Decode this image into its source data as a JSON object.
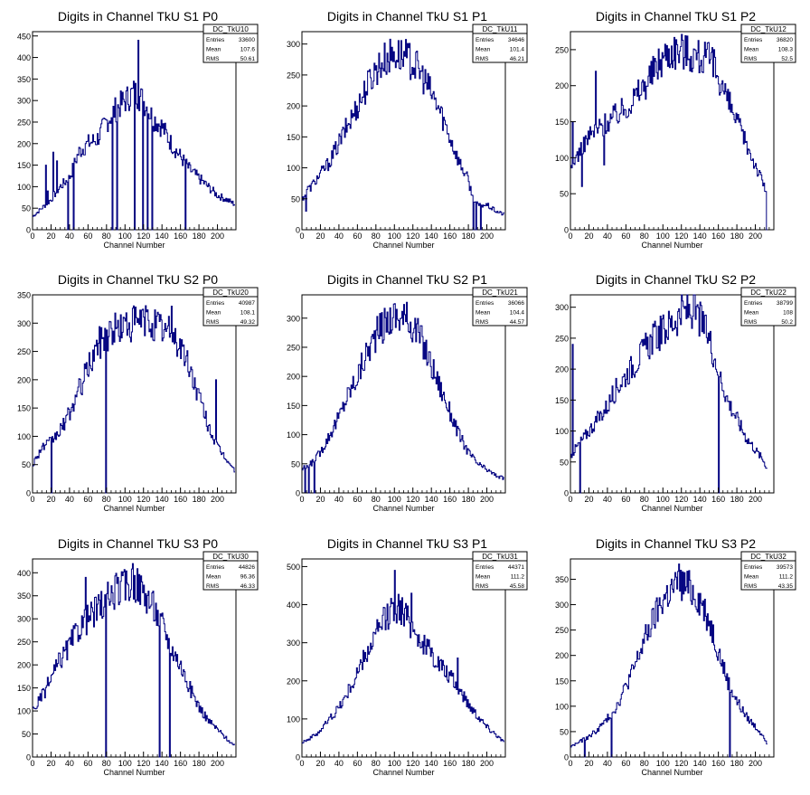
{
  "chart_data": [
    {
      "type": "histogram",
      "title": "Digits in Channel TkU S1 P0",
      "xlabel": "Channel Number",
      "ylabel": "",
      "xlim": [
        0,
        220
      ],
      "ylim": [
        0,
        460
      ],
      "xticks": [
        0,
        20,
        40,
        60,
        80,
        100,
        120,
        140,
        160,
        180,
        200
      ],
      "yticks": [
        0,
        50,
        100,
        150,
        200,
        250,
        300,
        350,
        400,
        450
      ],
      "stats": {
        "name": "DC_TkU10",
        "rows": [
          [
            "Entries",
            "33600"
          ],
          [
            "Mean",
            "107.6"
          ],
          [
            "RMS",
            "50.61"
          ]
        ]
      },
      "series": [
        {
          "x": [
            0,
            10,
            20,
            30,
            40,
            50,
            60,
            70,
            80,
            90,
            100,
            110,
            120,
            130,
            140,
            150,
            160,
            170,
            180,
            190,
            200,
            210,
            218
          ],
          "y": [
            30,
            50,
            70,
            100,
            120,
            180,
            200,
            210,
            250,
            280,
            300,
            320,
            300,
            260,
            240,
            200,
            170,
            140,
            120,
            100,
            80,
            70,
            60
          ]
        }
      ],
      "spikes": [
        [
          14,
          150
        ],
        [
          16,
          90
        ],
        [
          22,
          180
        ],
        [
          26,
          160
        ],
        [
          38,
          0
        ],
        [
          44,
          0
        ],
        [
          57,
          200
        ],
        [
          86,
          0
        ],
        [
          91,
          0
        ],
        [
          110,
          0
        ],
        [
          114,
          440
        ],
        [
          119,
          0
        ],
        [
          124,
          0
        ],
        [
          129,
          0
        ],
        [
          165,
          0
        ]
      ]
    },
    {
      "type": "histogram",
      "title": "Digits in Channel TkU S1 P1",
      "xlabel": "Channel Number",
      "ylabel": "",
      "xlim": [
        0,
        220
      ],
      "ylim": [
        0,
        320
      ],
      "xticks": [
        0,
        20,
        40,
        60,
        80,
        100,
        120,
        140,
        160,
        180,
        200
      ],
      "yticks": [
        0,
        50,
        100,
        150,
        200,
        250,
        300
      ],
      "stats": {
        "name": "DC_TkU11",
        "rows": [
          [
            "Entries",
            "34646"
          ],
          [
            "Mean",
            "101.4"
          ],
          [
            "RMS",
            "46.21"
          ]
        ]
      },
      "series": [
        {
          "x": [
            0,
            10,
            20,
            30,
            40,
            50,
            60,
            70,
            80,
            90,
            100,
            110,
            120,
            130,
            140,
            150,
            160,
            170,
            180,
            185,
            190,
            200,
            210,
            218
          ],
          "y": [
            50,
            70,
            90,
            110,
            140,
            170,
            200,
            230,
            260,
            275,
            285,
            280,
            270,
            250,
            220,
            190,
            150,
            110,
            80,
            50,
            40,
            40,
            30,
            25
          ]
        }
      ],
      "spikes": [
        [
          4,
          30
        ],
        [
          6,
          70
        ],
        [
          185,
          0
        ],
        [
          188,
          0
        ],
        [
          193,
          0
        ]
      ]
    },
    {
      "type": "histogram",
      "title": "Digits in Channel TkU S1 P2",
      "xlabel": "Channel Number",
      "ylabel": "",
      "xlim": [
        0,
        220
      ],
      "ylim": [
        0,
        275
      ],
      "xticks": [
        0,
        20,
        40,
        60,
        80,
        100,
        120,
        140,
        160,
        180,
        200
      ],
      "yticks": [
        0,
        50,
        100,
        150,
        200,
        250
      ],
      "stats": {
        "name": "DC_TkU12",
        "rows": [
          [
            "Entries",
            "36820"
          ],
          [
            "Mean",
            "108.3"
          ],
          [
            "RMS",
            "52.5"
          ]
        ]
      },
      "series": [
        {
          "x": [
            0,
            10,
            20,
            30,
            40,
            50,
            60,
            70,
            80,
            90,
            100,
            110,
            120,
            130,
            140,
            150,
            160,
            170,
            180,
            190,
            200,
            210,
            212
          ],
          "y": [
            80,
            110,
            130,
            140,
            150,
            160,
            170,
            185,
            200,
            220,
            240,
            250,
            250,
            245,
            240,
            235,
            215,
            180,
            150,
            120,
            90,
            60,
            50
          ]
        }
      ],
      "spikes": [
        [
          2,
          150
        ],
        [
          5,
          100
        ],
        [
          12,
          60
        ],
        [
          27,
          220
        ],
        [
          36,
          90
        ],
        [
          155,
          250
        ],
        [
          212,
          0
        ]
      ]
    },
    {
      "type": "histogram",
      "title": "Digits in Channel TkU S2 P0",
      "xlabel": "Channel Number",
      "ylabel": "",
      "xlim": [
        0,
        220
      ],
      "ylim": [
        0,
        350
      ],
      "xticks": [
        0,
        20,
        40,
        60,
        80,
        100,
        120,
        140,
        160,
        180,
        200
      ],
      "yticks": [
        0,
        50,
        100,
        150,
        200,
        250,
        300,
        350
      ],
      "stats": {
        "name": "DC_TkU20",
        "rows": [
          [
            "Entries",
            "40987"
          ],
          [
            "Mean",
            "108.1"
          ],
          [
            "RMS",
            "49.32"
          ]
        ]
      },
      "series": [
        {
          "x": [
            0,
            10,
            20,
            30,
            40,
            50,
            60,
            70,
            80,
            90,
            100,
            110,
            120,
            130,
            140,
            150,
            160,
            170,
            180,
            190,
            200,
            210,
            218
          ],
          "y": [
            50,
            80,
            90,
            110,
            140,
            180,
            220,
            260,
            280,
            290,
            295,
            300,
            305,
            300,
            290,
            280,
            260,
            220,
            170,
            120,
            80,
            60,
            40
          ]
        }
      ],
      "spikes": [
        [
          20,
          0
        ],
        [
          79,
          0
        ],
        [
          150,
          330
        ],
        [
          198,
          200
        ]
      ]
    },
    {
      "type": "histogram",
      "title": "Digits in Channel TkU S2 P1",
      "xlabel": "Channel Number",
      "ylabel": "",
      "xlim": [
        0,
        220
      ],
      "ylim": [
        0,
        340
      ],
      "xticks": [
        0,
        20,
        40,
        60,
        80,
        100,
        120,
        140,
        160,
        180,
        200
      ],
      "yticks": [
        0,
        50,
        100,
        150,
        200,
        250,
        300
      ],
      "stats": {
        "name": "DC_TkU21",
        "rows": [
          [
            "Entries",
            "36066"
          ],
          [
            "Mean",
            "104.4"
          ],
          [
            "RMS",
            "44.57"
          ]
        ]
      },
      "series": [
        {
          "x": [
            0,
            10,
            20,
            30,
            40,
            50,
            60,
            70,
            80,
            90,
            100,
            110,
            120,
            130,
            140,
            150,
            160,
            170,
            180,
            190,
            200,
            210,
            218
          ],
          "y": [
            40,
            50,
            70,
            100,
            130,
            170,
            200,
            240,
            270,
            290,
            305,
            300,
            290,
            260,
            220,
            180,
            140,
            100,
            70,
            50,
            40,
            30,
            25
          ]
        }
      ],
      "spikes": [
        [
          3,
          0
        ],
        [
          7,
          0
        ],
        [
          13,
          0
        ]
      ]
    },
    {
      "type": "histogram",
      "title": "Digits in Channel TkU S2 P2",
      "xlabel": "Channel Number",
      "ylabel": "",
      "xlim": [
        0,
        220
      ],
      "ylim": [
        0,
        320
      ],
      "xticks": [
        0,
        20,
        40,
        60,
        80,
        100,
        120,
        140,
        160,
        180,
        200
      ],
      "yticks": [
        0,
        50,
        100,
        150,
        200,
        250,
        300
      ],
      "stats": {
        "name": "DC_TkU22",
        "rows": [
          [
            "Entries",
            "38799"
          ],
          [
            "Mean",
            "108"
          ],
          [
            "RMS",
            "50.2"
          ]
        ]
      },
      "series": [
        {
          "x": [
            0,
            10,
            20,
            30,
            40,
            50,
            60,
            70,
            80,
            90,
            100,
            110,
            120,
            130,
            140,
            150,
            160,
            170,
            180,
            190,
            200,
            210,
            212
          ],
          "y": [
            60,
            80,
            100,
            120,
            140,
            170,
            190,
            210,
            230,
            250,
            260,
            275,
            290,
            295,
            280,
            250,
            200,
            150,
            120,
            90,
            70,
            50,
            40
          ]
        }
      ],
      "spikes": [
        [
          2,
          240
        ],
        [
          10,
          0
        ],
        [
          160,
          0
        ]
      ]
    },
    {
      "type": "histogram",
      "title": "Digits in Channel TkU S3 P0",
      "xlabel": "Channel Number",
      "ylabel": "",
      "xlim": [
        0,
        220
      ],
      "ylim": [
        0,
        430
      ],
      "xticks": [
        0,
        20,
        40,
        60,
        80,
        100,
        120,
        140,
        160,
        180,
        200
      ],
      "yticks": [
        0,
        50,
        100,
        150,
        200,
        250,
        300,
        350,
        400
      ],
      "stats": {
        "name": "DC_TkU30",
        "rows": [
          [
            "Entries",
            "44826"
          ],
          [
            "Mean",
            "96.36"
          ],
          [
            "RMS",
            "46.33"
          ]
        ]
      },
      "series": [
        {
          "x": [
            0,
            10,
            20,
            30,
            40,
            50,
            60,
            70,
            80,
            90,
            100,
            110,
            120,
            130,
            140,
            150,
            160,
            170,
            180,
            190,
            200,
            210,
            218
          ],
          "y": [
            100,
            130,
            170,
            210,
            240,
            280,
            300,
            320,
            340,
            360,
            370,
            380,
            360,
            330,
            290,
            240,
            200,
            150,
            110,
            80,
            60,
            40,
            25
          ]
        }
      ],
      "spikes": [
        [
          57,
          390
        ],
        [
          79,
          0
        ],
        [
          108,
          420
        ],
        [
          137,
          0
        ],
        [
          148,
          0
        ]
      ]
    },
    {
      "type": "histogram",
      "title": "Digits in Channel TkU S3 P1",
      "xlabel": "Channel Number",
      "ylabel": "",
      "xlim": [
        0,
        220
      ],
      "ylim": [
        0,
        520
      ],
      "xticks": [
        0,
        20,
        40,
        60,
        80,
        100,
        120,
        140,
        160,
        180,
        200
      ],
      "yticks": [
        0,
        100,
        200,
        300,
        400,
        500
      ],
      "stats": {
        "name": "DC_TkU31",
        "rows": [
          [
            "Entries",
            "44371"
          ],
          [
            "Mean",
            "111.2"
          ],
          [
            "RMS",
            "45.58"
          ]
        ]
      },
      "series": [
        {
          "x": [
            0,
            10,
            20,
            30,
            40,
            50,
            60,
            70,
            80,
            90,
            100,
            110,
            120,
            130,
            140,
            150,
            160,
            170,
            180,
            190,
            200,
            210,
            218
          ],
          "y": [
            40,
            50,
            70,
            100,
            130,
            170,
            220,
            270,
            320,
            360,
            400,
            380,
            340,
            300,
            270,
            240,
            210,
            180,
            140,
            110,
            80,
            60,
            40
          ]
        }
      ],
      "spikes": [
        [
          100,
          490
        ],
        [
          118,
          430
        ],
        [
          168,
          260
        ]
      ]
    },
    {
      "type": "histogram",
      "title": "Digits in Channel TkU S3 P2",
      "xlabel": "Channel Number",
      "ylabel": "",
      "xlim": [
        0,
        220
      ],
      "ylim": [
        0,
        390
      ],
      "xticks": [
        0,
        20,
        40,
        60,
        80,
        100,
        120,
        140,
        160,
        180,
        200
      ],
      "yticks": [
        0,
        50,
        100,
        150,
        200,
        250,
        300,
        350
      ],
      "stats": {
        "name": "DC_TkU32",
        "rows": [
          [
            "Entries",
            "39573"
          ],
          [
            "Mean",
            "111.2"
          ],
          [
            "RMS",
            "43.35"
          ]
        ]
      },
      "series": [
        {
          "x": [
            0,
            10,
            20,
            30,
            40,
            50,
            60,
            70,
            80,
            90,
            100,
            110,
            120,
            130,
            140,
            150,
            160,
            170,
            180,
            190,
            200,
            210,
            212
          ],
          "y": [
            20,
            30,
            40,
            55,
            75,
            100,
            140,
            180,
            230,
            270,
            310,
            330,
            340,
            330,
            310,
            270,
            210,
            150,
            110,
            80,
            60,
            40,
            25
          ]
        }
      ],
      "spikes": [
        [
          15,
          0
        ],
        [
          44,
          0
        ],
        [
          117,
          380
        ],
        [
          172,
          0
        ]
      ]
    }
  ],
  "colors": {
    "line": "#000080",
    "axis": "#000000",
    "background": "#ffffff"
  }
}
